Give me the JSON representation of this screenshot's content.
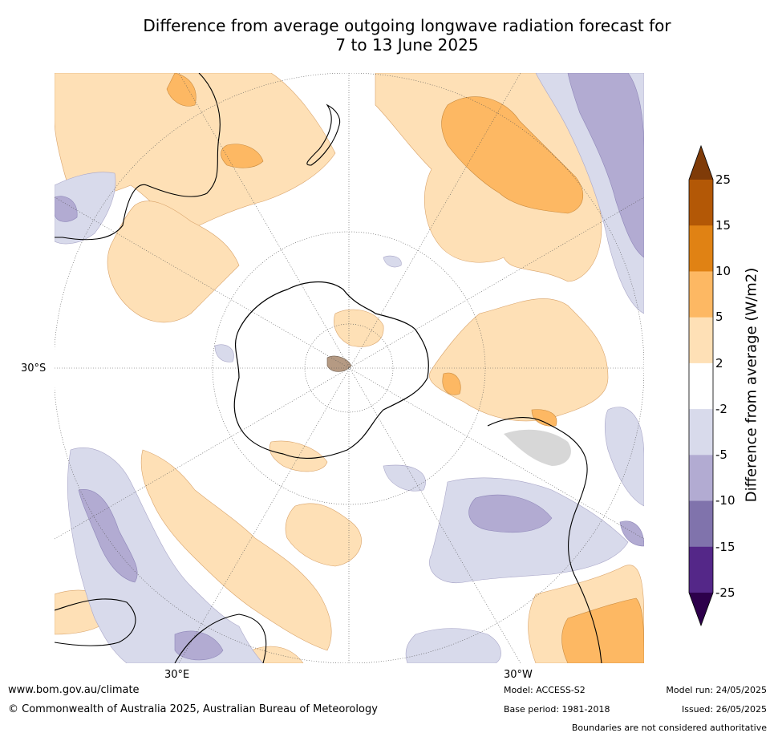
{
  "title": {
    "line1": "Difference from average outgoing longwave radiation forecast for",
    "line2": "7 to 13 June 2025"
  },
  "map_labels": {
    "lat_30s": "30°S",
    "lon_30e": "30°E",
    "lon_30w": "30°W"
  },
  "colorbar": {
    "label": "Difference from average (W/m2)",
    "ticks": [
      "25",
      "15",
      "10",
      "5",
      "2",
      "-2",
      "-5",
      "-10",
      "-15",
      "-25"
    ],
    "colors": [
      "#7f3b08",
      "#b35806",
      "#e08214",
      "#fdb863",
      "#fee0b6",
      "#ffffff",
      "#d8daeb",
      "#b2abd2",
      "#8073ac",
      "#542788",
      "#2d004b"
    ]
  },
  "footer": {
    "website": "www.bom.gov.au/climate",
    "copyright": "© Commonwealth of Australia 2025, Australian Bureau of Meteorology",
    "model": "Model: ACCESS-S2",
    "base_period": "Base period: 1981-2018",
    "model_run": "Model run: 24/05/2025",
    "issued": "Issued: 26/05/2025",
    "boundaries": "Boundaries are not considered authoritative"
  }
}
